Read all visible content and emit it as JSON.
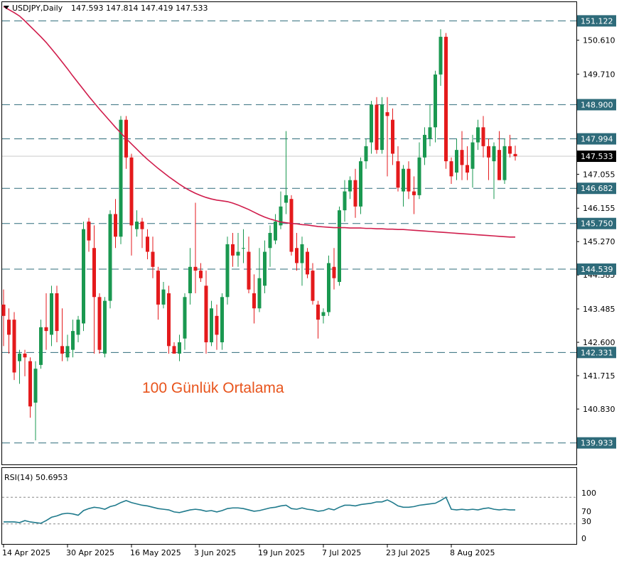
{
  "header": {
    "symbol": "USDJPY,Daily",
    "ohlc": "147.593 147.814 147.419 147.533"
  },
  "indicator": {
    "label": "RSI(14) 50.6953",
    "levels": [
      "100",
      "70",
      "30",
      "0"
    ]
  },
  "annotation": "100 Günlük Ortalama",
  "colors": {
    "bull": "#1a9850",
    "bear": "#e41a1c",
    "ma": "#d01c4b",
    "rsi": "#1f7a8c",
    "level_line": "#2e6b7a",
    "annotation": "#e8541c"
  },
  "chart_data": {
    "type": "candlestick",
    "symbol": "USDJPY",
    "timeframe": "Daily",
    "ylim": [
      139.4,
      151.6
    ],
    "price_ticks": [
      "150.610",
      "149.710",
      "147.055",
      "146.155",
      "145.270",
      "144.385",
      "143.485",
      "142.600",
      "141.715",
      "140.830"
    ],
    "level_lines": [
      "151.122",
      "148.900",
      "147.994",
      "146.682",
      "145.750",
      "144.539",
      "142.331",
      "139.933"
    ],
    "current_price": "147.533",
    "x_labels": [
      "14 Apr 2025",
      "30 Apr 2025",
      "16 May 2025",
      "3 Jun 2025",
      "19 Jun 2025",
      "7 Jul 2025",
      "23 Jul 2025",
      "8 Aug 2025"
    ],
    "x_label_index": [
      0,
      12,
      24,
      36,
      48,
      60,
      72,
      84
    ],
    "candles": [
      [
        143.6,
        144.0,
        142.5,
        143.3
      ],
      [
        143.2,
        143.5,
        142.3,
        142.8
      ],
      [
        143.2,
        143.4,
        141.6,
        141.8
      ],
      [
        142.1,
        142.4,
        141.5,
        142.3
      ],
      [
        142.3,
        142.4,
        141.7,
        142.2
      ],
      [
        142.1,
        142.2,
        140.6,
        140.9
      ],
      [
        141.0,
        142.1,
        140.0,
        141.9
      ],
      [
        142.0,
        143.2,
        141.9,
        143.0
      ],
      [
        143.0,
        143.9,
        142.4,
        142.9
      ],
      [
        142.8,
        144.1,
        142.5,
        143.9
      ],
      [
        143.9,
        144.1,
        142.6,
        142.9
      ],
      [
        142.5,
        143.5,
        142.1,
        142.3
      ],
      [
        142.2,
        142.8,
        142.1,
        142.5
      ],
      [
        142.4,
        143.2,
        142.2,
        142.9
      ],
      [
        142.8,
        143.3,
        142.6,
        143.2
      ],
      [
        143.1,
        145.8,
        142.9,
        145.6
      ],
      [
        145.8,
        145.9,
        145.0,
        145.3
      ],
      [
        145.1,
        145.7,
        142.3,
        143.8
      ],
      [
        143.8,
        143.9,
        142.3,
        142.4
      ],
      [
        142.3,
        143.8,
        142.2,
        143.7
      ],
      [
        143.7,
        146.1,
        143.5,
        146.0
      ],
      [
        146.0,
        146.4,
        145.1,
        145.4
      ],
      [
        145.4,
        148.6,
        145.2,
        148.5
      ],
      [
        148.5,
        148.6,
        147.2,
        147.5
      ],
      [
        147.5,
        147.6,
        144.9,
        145.7
      ],
      [
        145.6,
        146.1,
        145.4,
        145.8
      ],
      [
        145.8,
        145.9,
        145.1,
        145.6
      ],
      [
        145.4,
        145.6,
        144.8,
        145.0
      ],
      [
        145.0,
        145.4,
        144.3,
        144.6
      ],
      [
        144.5,
        144.6,
        143.2,
        143.6
      ],
      [
        143.6,
        144.2,
        143.5,
        144.0
      ],
      [
        143.9,
        144.1,
        142.3,
        142.5
      ],
      [
        142.5,
        142.6,
        142.3,
        142.3
      ],
      [
        142.3,
        142.8,
        142.1,
        142.6
      ],
      [
        142.7,
        143.9,
        142.4,
        143.8
      ],
      [
        143.9,
        145.1,
        143.6,
        144.6
      ],
      [
        144.6,
        146.3,
        143.9,
        144.5
      ],
      [
        144.5,
        144.7,
        144.2,
        144.3
      ],
      [
        144.1,
        144.5,
        142.3,
        142.6
      ],
      [
        142.6,
        143.7,
        142.5,
        143.5
      ],
      [
        143.3,
        143.6,
        142.4,
        142.8
      ],
      [
        142.6,
        143.9,
        142.4,
        143.8
      ],
      [
        143.8,
        145.4,
        143.6,
        145.2
      ],
      [
        145.2,
        145.5,
        144.6,
        144.9
      ],
      [
        144.9,
        145.5,
        144.6,
        145.0
      ],
      [
        145.1,
        145.6,
        144.7,
        145.1
      ],
      [
        145.0,
        145.4,
        143.9,
        144.0
      ],
      [
        143.9,
        144.4,
        143.1,
        143.5
      ],
      [
        143.5,
        145.1,
        143.4,
        144.3
      ],
      [
        144.1,
        145.3,
        143.9,
        145.0
      ],
      [
        145.1,
        145.7,
        144.6,
        145.5
      ],
      [
        145.3,
        146.0,
        145.2,
        145.8
      ],
      [
        145.7,
        146.6,
        145.6,
        146.2
      ],
      [
        146.3,
        148.2,
        146.0,
        146.5
      ],
      [
        146.4,
        146.5,
        144.9,
        145.0
      ],
      [
        145.1,
        145.5,
        144.5,
        144.7
      ],
      [
        144.7,
        145.4,
        144.1,
        145.2
      ],
      [
        145.0,
        145.1,
        144.3,
        144.4
      ],
      [
        144.5,
        144.7,
        143.6,
        143.7
      ],
      [
        143.6,
        143.7,
        142.7,
        143.2
      ],
      [
        143.3,
        143.5,
        143.1,
        143.4
      ],
      [
        143.4,
        144.9,
        143.3,
        144.7
      ],
      [
        144.6,
        145.1,
        144.0,
        144.3
      ],
      [
        144.2,
        146.2,
        144.1,
        146.1
      ],
      [
        146.1,
        146.9,
        145.8,
        146.6
      ],
      [
        146.6,
        147.0,
        146.4,
        146.9
      ],
      [
        146.9,
        147.2,
        145.9,
        146.2
      ],
      [
        146.2,
        147.5,
        146.0,
        147.4
      ],
      [
        147.4,
        148.0,
        147.2,
        147.8
      ],
      [
        147.9,
        149.0,
        147.6,
        148.9
      ],
      [
        148.9,
        149.1,
        147.6,
        147.7
      ],
      [
        147.7,
        149.1,
        147.6,
        148.9
      ],
      [
        148.7,
        149.1,
        147.0,
        148.6
      ],
      [
        148.5,
        148.8,
        147.3,
        147.6
      ],
      [
        147.4,
        147.8,
        146.6,
        146.7
      ],
      [
        146.6,
        147.3,
        146.2,
        147.2
      ],
      [
        147.2,
        147.4,
        146.4,
        146.6
      ],
      [
        146.6,
        147.0,
        146.0,
        146.5
      ],
      [
        146.5,
        147.9,
        146.4,
        147.5
      ],
      [
        147.5,
        148.3,
        147.3,
        148.1
      ],
      [
        148.0,
        148.9,
        147.8,
        148.3
      ],
      [
        148.3,
        149.8,
        147.9,
        149.7
      ],
      [
        149.7,
        150.9,
        149.4,
        150.7
      ],
      [
        150.7,
        150.8,
        147.2,
        147.4
      ],
      [
        147.4,
        147.5,
        146.8,
        147.0
      ],
      [
        147.1,
        148.0,
        146.9,
        147.7
      ],
      [
        147.7,
        148.2,
        146.9,
        147.3
      ],
      [
        147.3,
        147.8,
        146.9,
        147.1
      ],
      [
        147.2,
        148.1,
        146.7,
        147.9
      ],
      [
        147.9,
        148.5,
        147.7,
        148.3
      ],
      [
        148.3,
        148.6,
        147.5,
        147.8
      ],
      [
        147.8,
        148.0,
        146.9,
        147.5
      ],
      [
        147.4,
        147.9,
        146.4,
        147.8
      ],
      [
        147.7,
        148.2,
        146.9,
        146.9
      ],
      [
        146.9,
        148.0,
        146.8,
        147.8
      ],
      [
        147.8,
        148.1,
        147.5,
        147.6
      ],
      [
        147.593,
        147.814,
        147.419,
        147.533
      ]
    ],
    "ma_name": "100 Günlük Ortalama",
    "ma100": [
      151.5,
      151.42,
      151.34,
      151.25,
      151.12,
      150.98,
      150.84,
      150.7,
      150.55,
      150.38,
      150.21,
      150.03,
      149.85,
      149.66,
      149.48,
      149.3,
      149.12,
      148.95,
      148.78,
      148.62,
      148.46,
      148.3,
      148.15,
      148.0,
      147.86,
      147.72,
      147.58,
      147.45,
      147.33,
      147.21,
      147.1,
      146.99,
      146.89,
      146.79,
      146.7,
      146.62,
      146.55,
      146.49,
      146.44,
      146.4,
      146.37,
      146.35,
      146.33,
      146.29,
      146.24,
      146.18,
      146.12,
      146.05,
      145.98,
      145.92,
      145.87,
      145.83,
      145.79,
      145.77,
      145.75,
      145.74,
      145.72,
      145.71,
      145.69,
      145.67,
      145.66,
      145.65,
      145.64,
      145.64,
      145.64,
      145.63,
      145.63,
      145.63,
      145.62,
      145.62,
      145.61,
      145.61,
      145.6,
      145.6,
      145.59,
      145.59,
      145.58,
      145.57,
      145.56,
      145.55,
      145.54,
      145.53,
      145.52,
      145.51,
      145.5,
      145.49,
      145.48,
      145.47,
      145.46,
      145.45,
      145.44,
      145.43,
      145.42,
      145.41,
      145.4,
      145.39,
      145.39
    ],
    "rsi": {
      "name": "RSI(14)",
      "last": "50.6953",
      "ylim": [
        0,
        100
      ],
      "levels": [
        70,
        30
      ],
      "values": [
        33,
        33,
        33,
        32,
        35,
        33,
        32,
        31,
        35,
        40,
        42,
        45,
        46,
        45,
        43,
        50,
        53,
        55,
        54,
        52,
        56,
        58,
        62,
        65,
        62,
        60,
        58,
        57,
        55,
        53,
        52,
        51,
        48,
        47,
        49,
        51,
        52,
        51,
        49,
        50,
        48,
        50,
        53,
        54,
        54,
        53,
        51,
        49,
        50,
        52,
        54,
        55,
        57,
        58,
        53,
        52,
        54,
        52,
        51,
        49,
        50,
        53,
        51,
        55,
        58,
        58,
        57,
        59,
        60,
        61,
        63,
        63,
        66,
        62,
        57,
        55,
        55,
        56,
        58,
        59,
        60,
        61,
        65,
        70,
        52,
        51,
        52,
        51,
        52,
        51,
        53,
        54,
        52,
        51,
        52,
        51,
        51
      ]
    }
  }
}
